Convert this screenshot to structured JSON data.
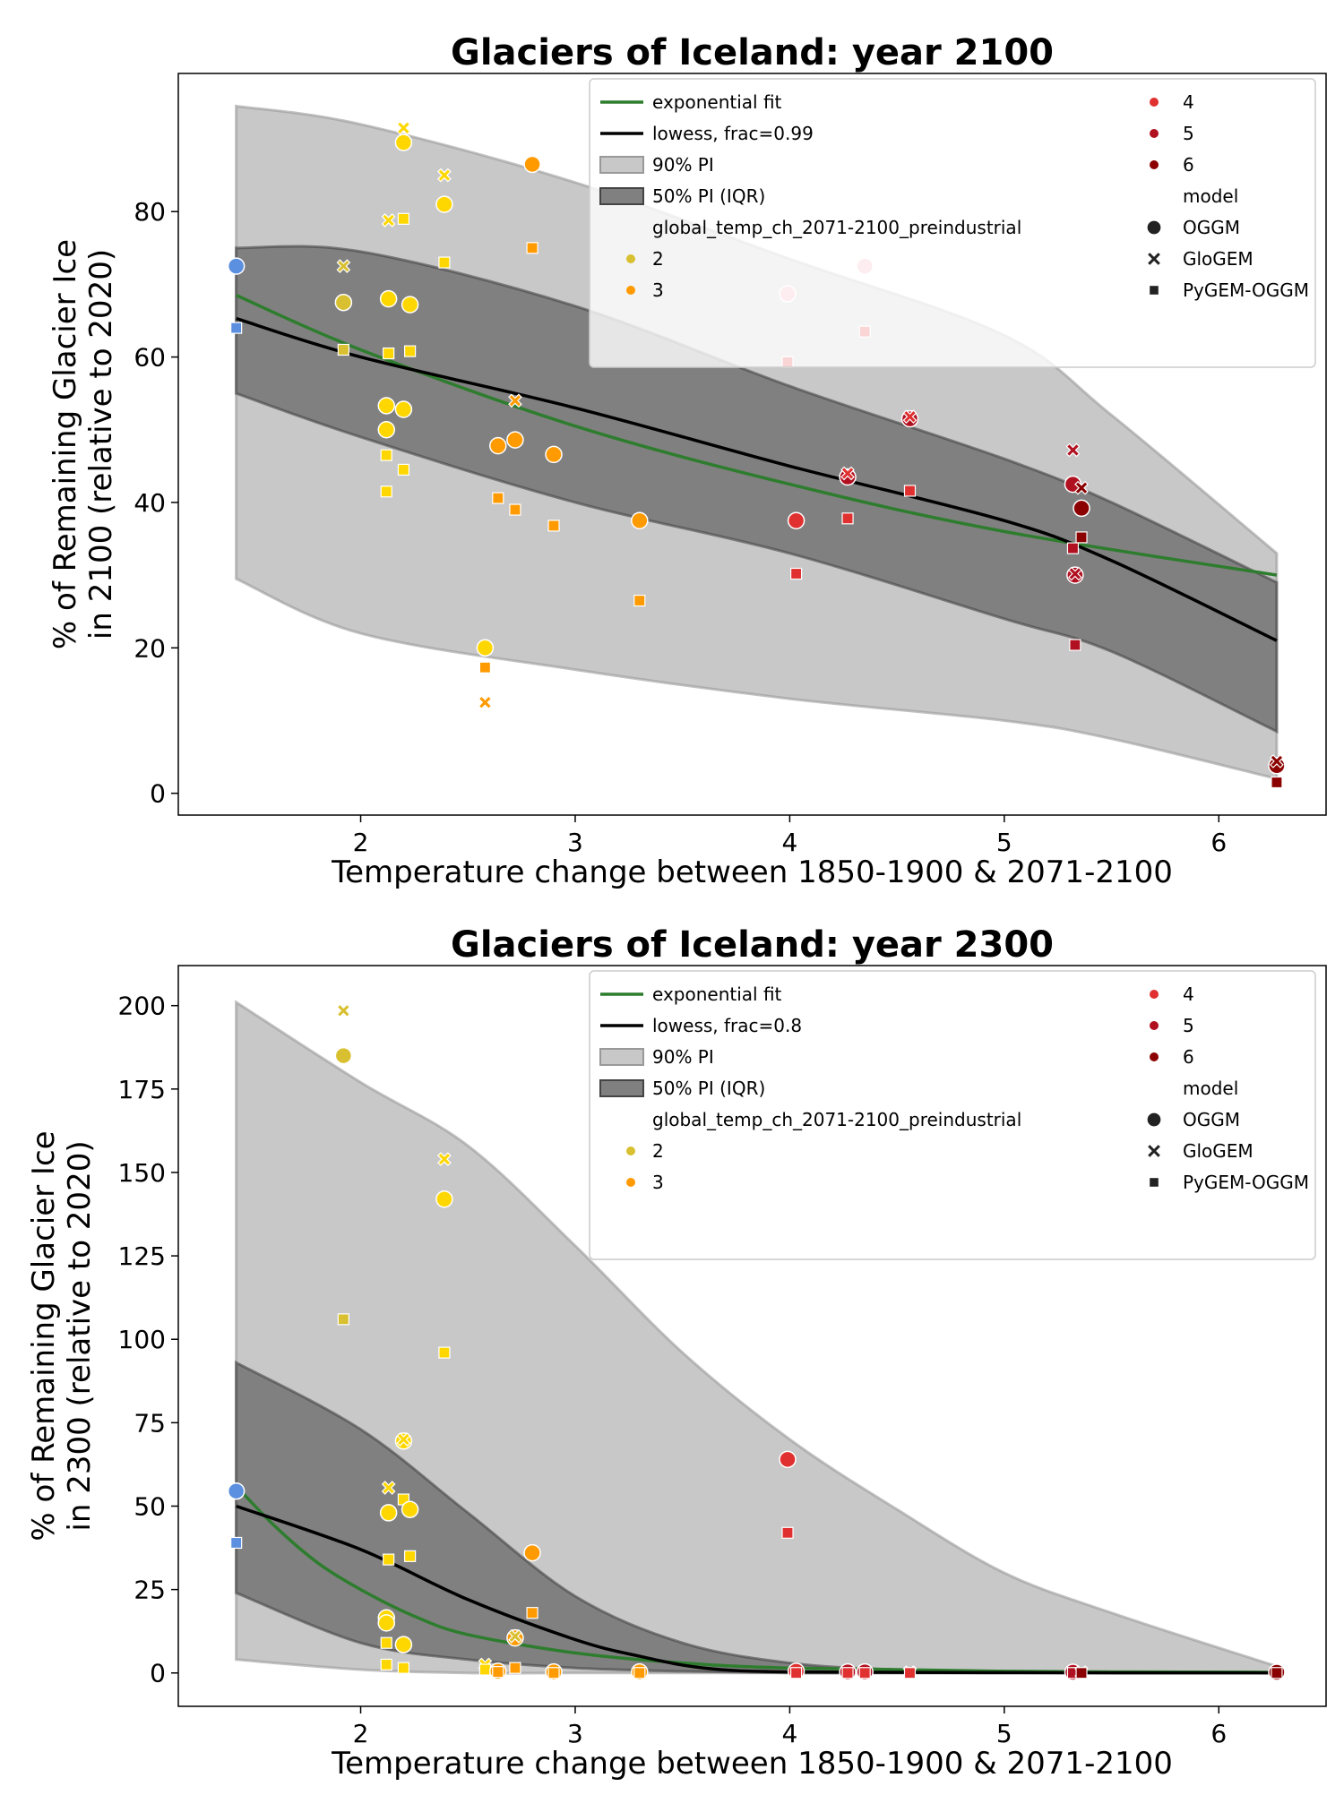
{
  "chart_data": [
    {
      "type": "scatter",
      "title": "Glaciers of Iceland:  year 2100",
      "xlabel": "Temperature change between 1850-1900 & 2071-2100",
      "ylabel_line1": "% of Remaining Glacier Ice",
      "ylabel_line2": "in 2100 (relative to 2020)",
      "xlim": [
        1.15,
        6.5
      ],
      "ylim": [
        -3,
        99
      ],
      "xticks": [
        "2",
        "3",
        "4",
        "5",
        "6"
      ],
      "xtick_values": [
        2,
        3,
        4,
        5,
        6
      ],
      "yticks": [
        "0",
        "20",
        "40",
        "60",
        "80"
      ],
      "ytick_values": [
        0,
        20,
        40,
        60,
        80
      ],
      "grid": false,
      "legend_position": "top-right",
      "legend": {
        "col1": [
          "exponential fit",
          "lowess, frac=0.99",
          "90% PI",
          "50% PI (IQR)",
          "global_temp_ch_2071-2100_preindustrial",
          "2",
          "3"
        ],
        "col2": [
          "4",
          "5",
          "6",
          "model",
          "OGGM",
          "GloGEM",
          "PyGEM-OGGM"
        ]
      },
      "colors": {
        "t1": "#5b8fe0",
        "t2": "#d8c030",
        "t2b": "#ffd700",
        "t3": "#ff9a00",
        "t4": "#e03030",
        "t4b": "#f4a6b4",
        "t5": "#b01020",
        "t6": "#8b0000",
        "fit": "#2e7d2e",
        "lowess": "#000000",
        "pi90": "#c8c8c8",
        "pi50": "#808080"
      },
      "exp_fit": {
        "x": [
          1.42,
          2,
          3,
          4,
          5,
          6.27
        ],
        "y": [
          68.5,
          61,
          50.5,
          42.5,
          36,
          30
        ]
      },
      "lowess": {
        "x": [
          1.42,
          2,
          3,
          4,
          5,
          5.5,
          6.27
        ],
        "y": [
          65.3,
          60,
          53,
          45,
          37.5,
          32,
          21
        ]
      },
      "pi90": {
        "x": [
          1.42,
          2,
          3,
          4,
          5,
          5.5,
          6.27
        ],
        "upper": [
          94.5,
          92,
          84,
          73.5,
          63,
          52,
          33
        ],
        "lower": [
          29.5,
          22,
          17,
          13,
          10,
          7.5,
          2
        ]
      },
      "pi50": {
        "x": [
          1.42,
          2,
          3,
          4,
          5,
          5.5,
          6.27
        ],
        "upper": [
          75,
          74.5,
          67,
          56,
          46,
          40,
          29
        ],
        "lower": [
          55,
          49,
          40,
          33,
          24,
          19.5,
          8.5
        ]
      },
      "points": [
        {
          "x": 1.42,
          "y": 72.5,
          "m": "OGGM",
          "c": "t1"
        },
        {
          "x": 1.42,
          "y": 64,
          "m": "PyGEM",
          "c": "t1"
        },
        {
          "x": 1.92,
          "y": 67.5,
          "m": "OGGM",
          "c": "t2"
        },
        {
          "x": 1.92,
          "y": 72.5,
          "m": "GloGEM",
          "c": "t2"
        },
        {
          "x": 1.92,
          "y": 61,
          "m": "PyGEM",
          "c": "t2"
        },
        {
          "x": 2.12,
          "y": 53.3,
          "m": "OGGM",
          "c": "t2b"
        },
        {
          "x": 2.12,
          "y": 50,
          "m": "OGGM",
          "c": "t2b"
        },
        {
          "x": 2.12,
          "y": 46.5,
          "m": "PyGEM",
          "c": "t2b"
        },
        {
          "x": 2.12,
          "y": 41.5,
          "m": "PyGEM",
          "c": "t2b"
        },
        {
          "x": 2.13,
          "y": 68,
          "m": "OGGM",
          "c": "t2b"
        },
        {
          "x": 2.13,
          "y": 78.8,
          "m": "GloGEM",
          "c": "t2b"
        },
        {
          "x": 2.13,
          "y": 60.5,
          "m": "PyGEM",
          "c": "t2b"
        },
        {
          "x": 2.2,
          "y": 89.5,
          "m": "OGGM",
          "c": "t2b"
        },
        {
          "x": 2.2,
          "y": 91.5,
          "m": "GloGEM",
          "c": "t2b"
        },
        {
          "x": 2.2,
          "y": 79,
          "m": "PyGEM",
          "c": "t2b"
        },
        {
          "x": 2.2,
          "y": 52.8,
          "m": "OGGM",
          "c": "t2b"
        },
        {
          "x": 2.2,
          "y": 44.5,
          "m": "PyGEM",
          "c": "t2b"
        },
        {
          "x": 2.23,
          "y": 67.2,
          "m": "OGGM",
          "c": "t2b"
        },
        {
          "x": 2.23,
          "y": 60.8,
          "m": "PyGEM",
          "c": "t2b"
        },
        {
          "x": 2.39,
          "y": 81,
          "m": "OGGM",
          "c": "t2b"
        },
        {
          "x": 2.39,
          "y": 85,
          "m": "GloGEM",
          "c": "t2b"
        },
        {
          "x": 2.39,
          "y": 73,
          "m": "PyGEM",
          "c": "t2b"
        },
        {
          "x": 2.58,
          "y": 20,
          "m": "OGGM",
          "c": "t2b"
        },
        {
          "x": 2.58,
          "y": 12.5,
          "m": "GloGEM",
          "c": "t3"
        },
        {
          "x": 2.58,
          "y": 17.3,
          "m": "PyGEM",
          "c": "t3"
        },
        {
          "x": 2.64,
          "y": 47.8,
          "m": "OGGM",
          "c": "t3"
        },
        {
          "x": 2.64,
          "y": 40.6,
          "m": "PyGEM",
          "c": "t3"
        },
        {
          "x": 2.72,
          "y": 48.6,
          "m": "OGGM",
          "c": "t3"
        },
        {
          "x": 2.72,
          "y": 54,
          "m": "GloGEM",
          "c": "t3"
        },
        {
          "x": 2.72,
          "y": 39,
          "m": "PyGEM",
          "c": "t3"
        },
        {
          "x": 2.8,
          "y": 86.5,
          "m": "OGGM",
          "c": "t3"
        },
        {
          "x": 2.8,
          "y": 75,
          "m": "PyGEM",
          "c": "t3"
        },
        {
          "x": 2.9,
          "y": 46.6,
          "m": "OGGM",
          "c": "t3"
        },
        {
          "x": 2.9,
          "y": 36.8,
          "m": "PyGEM",
          "c": "t3"
        },
        {
          "x": 3.3,
          "y": 37.5,
          "m": "OGGM",
          "c": "t3"
        },
        {
          "x": 3.3,
          "y": 26.5,
          "m": "PyGEM",
          "c": "t3"
        },
        {
          "x": 3.99,
          "y": 68.7,
          "m": "OGGM",
          "c": "t4b"
        },
        {
          "x": 3.99,
          "y": 59.3,
          "m": "PyGEM",
          "c": "t4"
        },
        {
          "x": 4.03,
          "y": 37.5,
          "m": "OGGM",
          "c": "t4"
        },
        {
          "x": 4.03,
          "y": 30.2,
          "m": "PyGEM",
          "c": "t4"
        },
        {
          "x": 4.35,
          "y": 72.5,
          "m": "OGGM",
          "c": "t4b"
        },
        {
          "x": 4.35,
          "y": 63.5,
          "m": "PyGEM",
          "c": "t4"
        },
        {
          "x": 4.27,
          "y": 43.5,
          "m": "OGGM",
          "c": "t5"
        },
        {
          "x": 4.27,
          "y": 44,
          "m": "GloGEM",
          "c": "t4"
        },
        {
          "x": 4.27,
          "y": 37.8,
          "m": "PyGEM",
          "c": "t4"
        },
        {
          "x": 4.56,
          "y": 51.5,
          "m": "OGGM",
          "c": "t5"
        },
        {
          "x": 4.56,
          "y": 51.8,
          "m": "GloGEM",
          "c": "t4"
        },
        {
          "x": 4.56,
          "y": 41.6,
          "m": "PyGEM",
          "c": "t4"
        },
        {
          "x": 5.32,
          "y": 42.5,
          "m": "OGGM",
          "c": "t5"
        },
        {
          "x": 5.32,
          "y": 47.2,
          "m": "GloGEM",
          "c": "t5"
        },
        {
          "x": 5.32,
          "y": 33.7,
          "m": "PyGEM",
          "c": "t5"
        },
        {
          "x": 5.33,
          "y": 30,
          "m": "OGGM",
          "c": "t5"
        },
        {
          "x": 5.33,
          "y": 30.2,
          "m": "GloGEM",
          "c": "t5"
        },
        {
          "x": 5.33,
          "y": 20.4,
          "m": "PyGEM",
          "c": "t5"
        },
        {
          "x": 5.36,
          "y": 39.2,
          "m": "OGGM",
          "c": "t6"
        },
        {
          "x": 5.36,
          "y": 42,
          "m": "GloGEM",
          "c": "t6"
        },
        {
          "x": 5.36,
          "y": 35.2,
          "m": "PyGEM",
          "c": "t6"
        },
        {
          "x": 6.27,
          "y": 3.8,
          "m": "OGGM",
          "c": "t6"
        },
        {
          "x": 6.27,
          "y": 4.4,
          "m": "GloGEM",
          "c": "t6"
        },
        {
          "x": 6.27,
          "y": 1.5,
          "m": "PyGEM",
          "c": "t6"
        }
      ]
    },
    {
      "type": "scatter",
      "title": "Glaciers of Iceland:  year 2300",
      "xlabel": "Temperature change between 1850-1900 & 2071-2100",
      "ylabel_line1": "% of Remaining Glacier Ice",
      "ylabel_line2": "in 2300 (relative to 2020)",
      "xlim": [
        1.15,
        6.5
      ],
      "ylim": [
        -10,
        212
      ],
      "xticks": [
        "2",
        "3",
        "4",
        "5",
        "6"
      ],
      "xtick_values": [
        2,
        3,
        4,
        5,
        6
      ],
      "yticks": [
        "0",
        "25",
        "50",
        "75",
        "100",
        "125",
        "150",
        "175",
        "200"
      ],
      "ytick_values": [
        0,
        25,
        50,
        75,
        100,
        125,
        150,
        175,
        200
      ],
      "grid": false,
      "legend_position": "top-right",
      "legend": {
        "col1": [
          "exponential fit",
          "lowess, frac=0.8",
          "90% PI",
          "50% PI (IQR)",
          "global_temp_ch_2071-2100_preindustrial",
          "2",
          "3"
        ],
        "col2": [
          "4",
          "5",
          "6",
          "model",
          "OGGM",
          "GloGEM",
          "PyGEM-OGGM"
        ]
      },
      "colors": {
        "t1": "#5b8fe0",
        "t2": "#d8c030",
        "t2b": "#ffd700",
        "t3": "#ff9a00",
        "t4": "#e03030",
        "t4b": "#f4a6b4",
        "t5": "#b01020",
        "t6": "#8b0000",
        "fit": "#2e7d2e",
        "lowess": "#000000",
        "pi90": "#c8c8c8",
        "pi50": "#808080"
      },
      "exp_fit": {
        "x": [
          1.42,
          1.6,
          1.8,
          2,
          2.25,
          2.5,
          3,
          3.5,
          4,
          5,
          6.27
        ],
        "y": [
          56,
          44,
          33,
          25,
          17,
          11.5,
          6,
          3,
          1.5,
          0.5,
          0.2
        ]
      },
      "lowess": {
        "x": [
          1.42,
          2,
          2.5,
          3,
          3.3,
          3.6,
          4,
          5,
          6.27
        ],
        "y": [
          50,
          37,
          22,
          10,
          5,
          1.5,
          0.3,
          0.1,
          0
        ]
      },
      "pi90": {
        "x": [
          1.42,
          2,
          2.5,
          3,
          3.5,
          4,
          4.5,
          5,
          5.5,
          6.27
        ],
        "upper": [
          201,
          177,
          158,
          128,
          96,
          70,
          49,
          30,
          18,
          2
        ],
        "lower": [
          4,
          1,
          0,
          0,
          0,
          0,
          0,
          0,
          0,
          0
        ]
      },
      "pi50": {
        "x": [
          1.42,
          2,
          2.5,
          3,
          3.5,
          4,
          4.5,
          5,
          5.5,
          6.27
        ],
        "upper": [
          93,
          73,
          48,
          23,
          9,
          3,
          1,
          0.5,
          0.2,
          0
        ],
        "lower": [
          24,
          9,
          4,
          1.5,
          0.5,
          0,
          0,
          0,
          0,
          0
        ]
      },
      "points": [
        {
          "x": 1.42,
          "y": 54.5,
          "m": "OGGM",
          "c": "t1"
        },
        {
          "x": 1.42,
          "y": 39,
          "m": "PyGEM",
          "c": "t1"
        },
        {
          "x": 1.92,
          "y": 185,
          "m": "OGGM",
          "c": "t2"
        },
        {
          "x": 1.92,
          "y": 198.5,
          "m": "GloGEM",
          "c": "t2"
        },
        {
          "x": 1.92,
          "y": 106,
          "m": "PyGEM",
          "c": "t2"
        },
        {
          "x": 2.12,
          "y": 16.5,
          "m": "OGGM",
          "c": "t2b"
        },
        {
          "x": 2.12,
          "y": 15,
          "m": "OGGM",
          "c": "t2b"
        },
        {
          "x": 2.12,
          "y": 9,
          "m": "PyGEM",
          "c": "t2b"
        },
        {
          "x": 2.12,
          "y": 2.5,
          "m": "PyGEM",
          "c": "t2b"
        },
        {
          "x": 2.13,
          "y": 48,
          "m": "OGGM",
          "c": "t2b"
        },
        {
          "x": 2.13,
          "y": 55.5,
          "m": "GloGEM",
          "c": "t2b"
        },
        {
          "x": 2.13,
          "y": 34,
          "m": "PyGEM",
          "c": "t2b"
        },
        {
          "x": 2.2,
          "y": 69.5,
          "m": "OGGM",
          "c": "t2b"
        },
        {
          "x": 2.2,
          "y": 70,
          "m": "GloGEM",
          "c": "t2b"
        },
        {
          "x": 2.2,
          "y": 52,
          "m": "PyGEM",
          "c": "t2b"
        },
        {
          "x": 2.2,
          "y": 8.5,
          "m": "OGGM",
          "c": "t2b"
        },
        {
          "x": 2.2,
          "y": 1.5,
          "m": "PyGEM",
          "c": "t2b"
        },
        {
          "x": 2.23,
          "y": 49,
          "m": "OGGM",
          "c": "t2b"
        },
        {
          "x": 2.23,
          "y": 35,
          "m": "PyGEM",
          "c": "t2b"
        },
        {
          "x": 2.39,
          "y": 142,
          "m": "OGGM",
          "c": "t2b"
        },
        {
          "x": 2.39,
          "y": 154,
          "m": "GloGEM",
          "c": "t2b"
        },
        {
          "x": 2.39,
          "y": 96,
          "m": "PyGEM",
          "c": "t2b"
        },
        {
          "x": 2.58,
          "y": 2.5,
          "m": "GloGEM",
          "c": "t2b"
        },
        {
          "x": 2.58,
          "y": 1,
          "m": "PyGEM",
          "c": "t2b"
        },
        {
          "x": 2.64,
          "y": 0.5,
          "m": "OGGM",
          "c": "t3"
        },
        {
          "x": 2.64,
          "y": 0.3,
          "m": "PyGEM",
          "c": "t3"
        },
        {
          "x": 2.72,
          "y": 10.5,
          "m": "OGGM",
          "c": "t3"
        },
        {
          "x": 2.72,
          "y": 11,
          "m": "GloGEM",
          "c": "t2"
        },
        {
          "x": 2.72,
          "y": 1.5,
          "m": "PyGEM",
          "c": "t3"
        },
        {
          "x": 2.8,
          "y": 36,
          "m": "OGGM",
          "c": "t3"
        },
        {
          "x": 2.8,
          "y": 18,
          "m": "PyGEM",
          "c": "t3"
        },
        {
          "x": 2.9,
          "y": 0.3,
          "m": "OGGM",
          "c": "t3"
        },
        {
          "x": 2.9,
          "y": 0,
          "m": "PyGEM",
          "c": "t3"
        },
        {
          "x": 3.3,
          "y": 0.3,
          "m": "OGGM",
          "c": "t3"
        },
        {
          "x": 3.3,
          "y": 0,
          "m": "PyGEM",
          "c": "t3"
        },
        {
          "x": 3.99,
          "y": 64,
          "m": "OGGM",
          "c": "t4"
        },
        {
          "x": 3.99,
          "y": 42,
          "m": "PyGEM",
          "c": "t4"
        },
        {
          "x": 4.03,
          "y": 0.5,
          "m": "OGGM",
          "c": "t4"
        },
        {
          "x": 4.03,
          "y": 0,
          "m": "PyGEM",
          "c": "t4"
        },
        {
          "x": 4.27,
          "y": 0.3,
          "m": "OGGM",
          "c": "t5"
        },
        {
          "x": 4.27,
          "y": 0,
          "m": "PyGEM",
          "c": "t4"
        },
        {
          "x": 4.35,
          "y": 0.3,
          "m": "OGGM",
          "c": "t5"
        },
        {
          "x": 4.35,
          "y": 0,
          "m": "PyGEM",
          "c": "t4"
        },
        {
          "x": 4.56,
          "y": 0.2,
          "m": "GloGEM",
          "c": "t4"
        },
        {
          "x": 4.56,
          "y": 0,
          "m": "PyGEM",
          "c": "t4"
        },
        {
          "x": 5.32,
          "y": 0.2,
          "m": "OGGM",
          "c": "t5"
        },
        {
          "x": 5.32,
          "y": 0,
          "m": "PyGEM",
          "c": "t5"
        },
        {
          "x": 5.36,
          "y": 0.2,
          "m": "GloGEM",
          "c": "t6"
        },
        {
          "x": 5.36,
          "y": 0,
          "m": "PyGEM",
          "c": "t6"
        },
        {
          "x": 6.27,
          "y": 0.2,
          "m": "OGGM",
          "c": "t6"
        },
        {
          "x": 6.27,
          "y": 0,
          "m": "PyGEM",
          "c": "t6"
        }
      ]
    }
  ]
}
